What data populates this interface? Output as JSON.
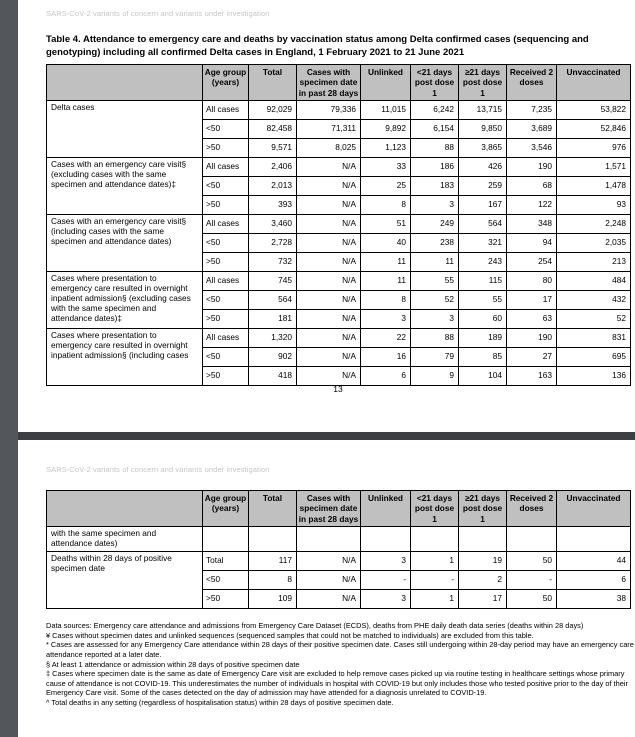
{
  "colors": {
    "viewer_gutter": "#53565a",
    "page_separator": "#3d4043",
    "table_header_fill": "#c0c0c0",
    "running_header_text": "#c6c6c6"
  },
  "page1": {
    "running_header": "SARS-CoV-2 variants of concern and variants under investigation",
    "title": "Table 4. Attendance to emergency care and deaths by vaccination status among Delta confirmed cases (sequencing and genotyping) including all confirmed Delta cases in England, 1 February 2021 to 21 June 2021",
    "page_number": "13"
  },
  "page2": {
    "running_header": "SARS-CoV-2 variants of concern and variants under investigation"
  },
  "table1": {
    "headers": [
      "",
      "Age group (years)",
      "Total",
      "Cases with specimen date in past 28 days",
      "Unlinked",
      "<21 days post dose 1",
      "≥21 days post dose 1",
      "Received 2 doses",
      "Unvaccinated"
    ],
    "groups": [
      {
        "label": "Delta cases",
        "rows": [
          [
            "All cases",
            "92,029",
            "79,336",
            "11,015",
            "6,242",
            "13,715",
            "7,235",
            "53,822"
          ],
          [
            "<50",
            "82,458",
            "71,311",
            "9,892",
            "6,154",
            "9,850",
            "3,689",
            "52,846"
          ],
          [
            ">50",
            "9,571",
            "8,025",
            "1,123",
            "88",
            "3,865",
            "3,546",
            "976"
          ]
        ]
      },
      {
        "label": "Cases with an emergency care visit§ (excluding cases with the same specimen and attendance dates)‡",
        "rows": [
          [
            "All cases",
            "2,406",
            "N/A",
            "33",
            "186",
            "426",
            "190",
            "1,571"
          ],
          [
            "<50",
            "2,013",
            "N/A",
            "25",
            "183",
            "259",
            "68",
            "1,478"
          ],
          [
            ">50",
            "393",
            "N/A",
            "8",
            "3",
            "167",
            "122",
            "93"
          ]
        ]
      },
      {
        "label": "Cases with an emergency care visit§ (including cases with the same specimen and attendance dates)",
        "rows": [
          [
            "All cases",
            "3,460",
            "N/A",
            "51",
            "249",
            "564",
            "348",
            "2,248"
          ],
          [
            "<50",
            "2,728",
            "N/A",
            "40",
            "238",
            "321",
            "94",
            "2,035"
          ],
          [
            ">50",
            "732",
            "N/A",
            "11",
            "11",
            "243",
            "254",
            "213"
          ]
        ]
      },
      {
        "label": "Cases where presentation to emergency care resulted in overnight inpatient admission§ (excluding cases with the same specimen and attendance dates)‡",
        "rows": [
          [
            "All cases",
            "745",
            "N/A",
            "11",
            "55",
            "115",
            "80",
            "484"
          ],
          [
            "<50",
            "564",
            "N/A",
            "8",
            "52",
            "55",
            "17",
            "432"
          ],
          [
            ">50",
            "181",
            "N/A",
            "3",
            "3",
            "60",
            "63",
            "52"
          ]
        ]
      },
      {
        "label": "Cases where presentation to emergency care resulted in overnight inpatient admission§ (including cases",
        "rows": [
          [
            "All cases",
            "1,320",
            "N/A",
            "22",
            "88",
            "189",
            "190",
            "831"
          ],
          [
            "<50",
            "902",
            "N/A",
            "16",
            "79",
            "85",
            "27",
            "695"
          ],
          [
            ">50",
            "418",
            "N/A",
            "6",
            "9",
            "104",
            "163",
            "136"
          ]
        ]
      }
    ]
  },
  "table2": {
    "headers": [
      "",
      "Age group (years)",
      "Total",
      "Cases with specimen date in past 28 days",
      "Unlinked",
      "<21 days post dose 1",
      "≥21 days post dose 1",
      "Received 2 doses",
      "Unvaccinated"
    ],
    "groups": [
      {
        "label": "with the same specimen and attendance dates)",
        "rows": [
          [
            "",
            "",
            "",
            "",
            "",
            "",
            "",
            ""
          ]
        ]
      },
      {
        "label": "Deaths within 28 days of positive specimen date",
        "rows": [
          [
            "Total",
            "117",
            "N/A",
            "3",
            "1",
            "19",
            "50",
            "44"
          ],
          [
            "<50",
            "8",
            "N/A",
            "-",
            "-",
            "2",
            "-",
            "6"
          ],
          [
            ">50",
            "109",
            "N/A",
            "3",
            "1",
            "17",
            "50",
            "38"
          ]
        ]
      }
    ]
  },
  "footnotes": [
    "Data sources: Emergency care attendance and admissions from Emergency Care Dataset (ECDS), deaths from PHE daily death data series (deaths within 28 days)",
    "¥ Cases without specimen dates and unlinked sequences (sequenced samples that could not be matched to individuals) are excluded from this table.",
    "* Cases are assessed for any Emergency Care attendance within 28 days of their positive specimen date. Cases still undergoing within 28-day period may have an emergency care attendance reported at a later date.",
    "§ At least 1 attendance or admission within 28 days of positive specimen date",
    "‡ Cases where specimen date is the same as date of Emergency Care visit are excluded to help remove cases picked up via routine testing in healthcare settings whose primary cause of attendance is not COVID-19. This underestimates the number of individuals in hospital with COVID-19 but only includes those who tested positive prior to the day of their Emergency Care visit. Some of the cases detected on the day of admission may have attended for a diagnosis unrelated to COVID-19.",
    "^ Total deaths in any setting (regardless of hospitalisation status) within 28 days of positive specimen date."
  ]
}
